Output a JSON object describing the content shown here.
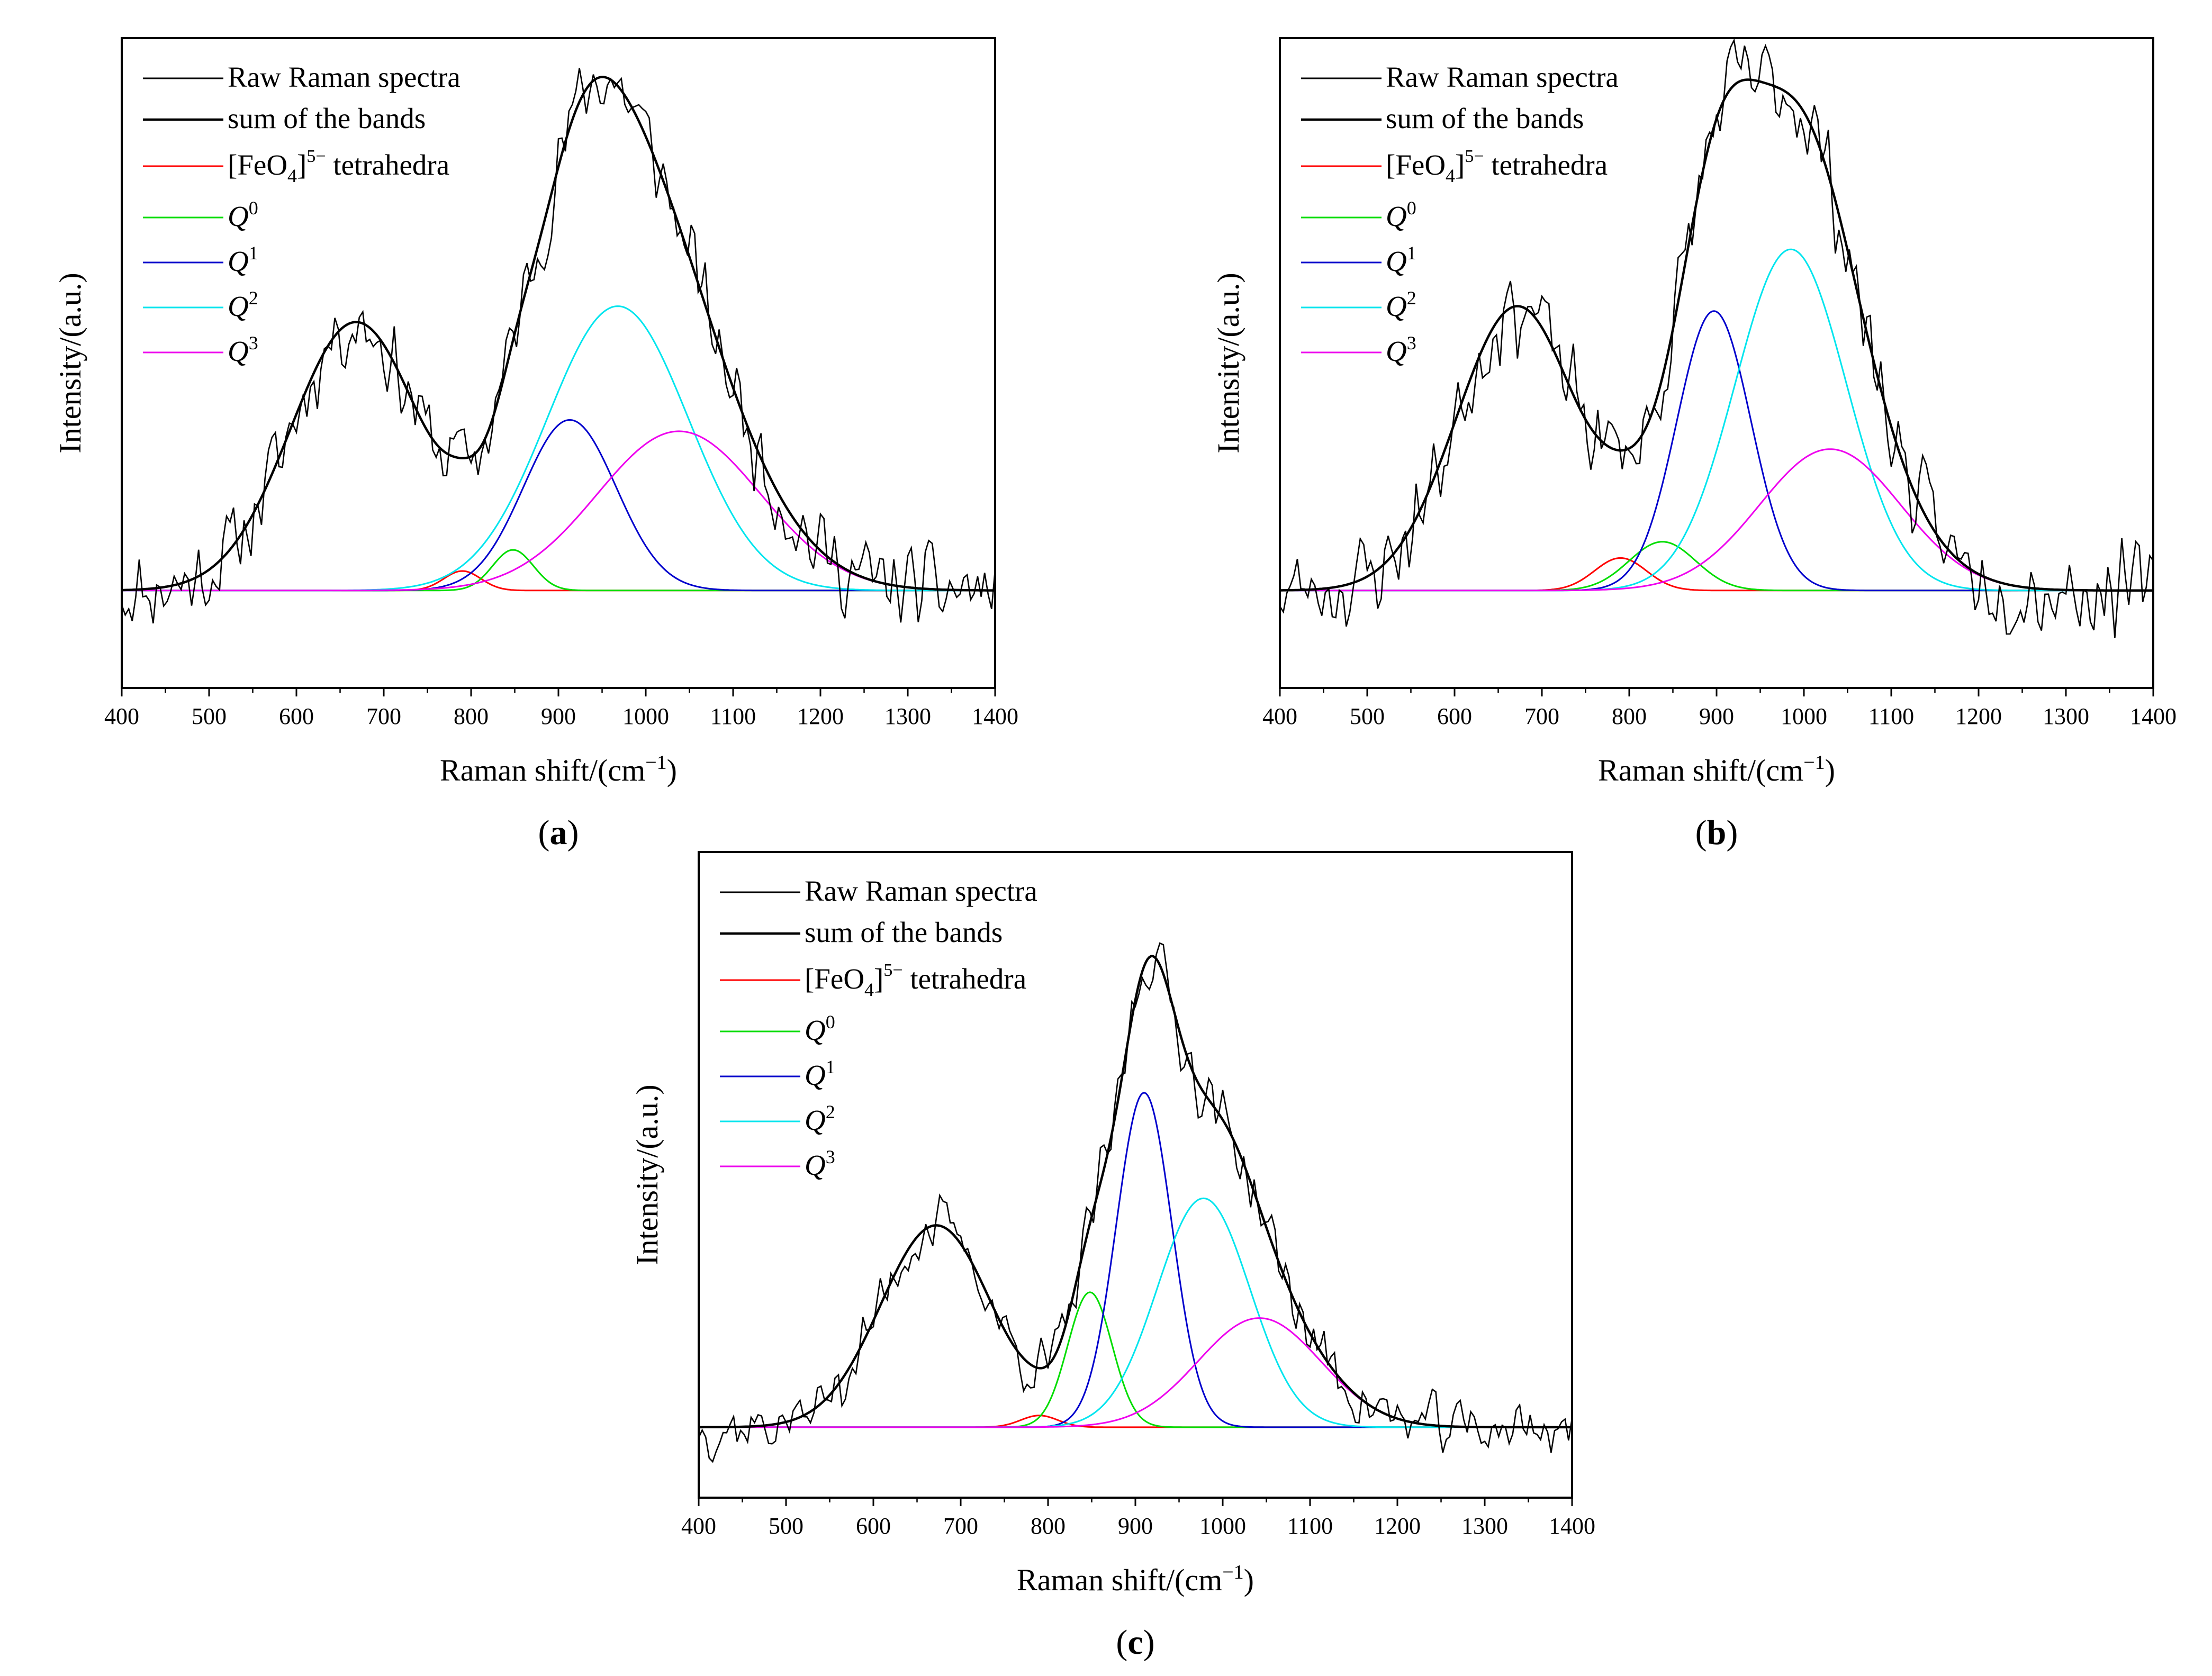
{
  "chart_data": [
    {
      "type": "line",
      "panel_label": "a",
      "xlabel": "Raman shift/(cm",
      "xlabel_sup": "−1",
      "xlabel_end": ")",
      "ylabel": "Intensity/(a.u.)",
      "xlim": [
        400,
        1400
      ],
      "xticks": [
        "400",
        "500",
        "600",
        "700",
        "800",
        "900",
        "1000",
        "1100",
        "1200",
        "1300",
        "1400"
      ],
      "ylim": [
        -0.06,
        0.34
      ],
      "grid": false,
      "legend_position": "top-left",
      "legend": [
        {
          "label": "Raw Raman spectra",
          "color": "#000000"
        },
        {
          "label": "sum of the bands",
          "color": "#000000"
        },
        {
          "label_parts": [
            "[FeO",
            "4",
            "]",
            "5−",
            " tetrahedra"
          ],
          "color": "#ff0000"
        },
        {
          "label_parts": [
            "Q",
            "0"
          ],
          "color": "#00dd00"
        },
        {
          "label_parts": [
            "Q",
            "1"
          ],
          "color": "#0000cc"
        },
        {
          "label_parts": [
            "Q",
            "2"
          ],
          "color": "#00e5ee"
        },
        {
          "label_parts": [
            "Q",
            "3"
          ],
          "color": "#ee00ee"
        }
      ],
      "series": [
        {
          "name": "Raw Raman spectra",
          "color": "#000000",
          "x_start": 400,
          "x_end": 1400,
          "x_step": 4,
          "noise_amplitude": 0.02,
          "seed": 11
        },
        {
          "name": "sum of the bands",
          "color": "#000000",
          "sum_of": [
            "[FeO4]5- low-frequency band",
            "[FeO4]5- tetrahedra",
            "Q0",
            "Q1",
            "Q2",
            "Q3"
          ]
        },
        {
          "name": "[FeO4]5- low-frequency band",
          "shown_in_legend": false,
          "center": 668,
          "height": 0.165,
          "fwhm": 175
        },
        {
          "name": "[FeO4]5- tetrahedra",
          "color": "#ff0000",
          "center": 790,
          "height": 0.012,
          "fwhm": 50
        },
        {
          "name": "Q0",
          "color": "#00dd00",
          "center": 848,
          "height": 0.025,
          "fwhm": 55
        },
        {
          "name": "Q1",
          "color": "#0000cc",
          "center": 913,
          "height": 0.105,
          "fwhm": 125
        },
        {
          "name": "Q2",
          "color": "#00e5ee",
          "center": 968,
          "height": 0.175,
          "fwhm": 190
        },
        {
          "name": "Q3",
          "color": "#ee00ee",
          "center": 1038,
          "height": 0.098,
          "fwhm": 220
        }
      ]
    },
    {
      "type": "line",
      "panel_label": "b",
      "xlabel": "Raman shift/(cm",
      "xlabel_sup": "−1",
      "xlabel_end": ")",
      "ylabel": "Intensity/(a.u.)",
      "xlim": [
        400,
        1400
      ],
      "xticks": [
        "400",
        "500",
        "600",
        "700",
        "800",
        "900",
        "1000",
        "1100",
        "1200",
        "1300",
        "1400"
      ],
      "ylim": [
        -0.06,
        0.34
      ],
      "grid": false,
      "legend_position": "top-left",
      "legend": [
        {
          "label": "Raw Raman spectra",
          "color": "#000000"
        },
        {
          "label": "sum of the bands",
          "color": "#000000"
        },
        {
          "label_parts": [
            "[FeO",
            "4",
            "]",
            "5−",
            " tetrahedra"
          ],
          "color": "#ff0000"
        },
        {
          "label_parts": [
            "Q",
            "0"
          ],
          "color": "#00dd00"
        },
        {
          "label_parts": [
            "Q",
            "1"
          ],
          "color": "#0000cc"
        },
        {
          "label_parts": [
            "Q",
            "2"
          ],
          "color": "#00e5ee"
        },
        {
          "label_parts": [
            "Q",
            "3"
          ],
          "color": "#ee00ee"
        }
      ],
      "series": [
        {
          "name": "Raw Raman spectra",
          "color": "#000000",
          "x_start": 400,
          "x_end": 1400,
          "x_step": 4,
          "noise_amplitude": 0.022,
          "seed": 23
        },
        {
          "name": "sum of the bands",
          "color": "#000000",
          "sum_of": [
            "[FeO4]5- low-frequency band",
            "[FeO4]5- tetrahedra",
            "Q0",
            "Q1",
            "Q2",
            "Q3"
          ]
        },
        {
          "name": "[FeO4]5- low-frequency band",
          "shown_in_legend": false,
          "center": 672,
          "height": 0.175,
          "fwhm": 165
        },
        {
          "name": "[FeO4]5- tetrahedra",
          "color": "#ff0000",
          "center": 790,
          "height": 0.02,
          "fwhm": 70
        },
        {
          "name": "Q0",
          "color": "#00dd00",
          "center": 838,
          "height": 0.03,
          "fwhm": 90
        },
        {
          "name": "Q1",
          "color": "#0000cc",
          "center": 897,
          "height": 0.172,
          "fwhm": 100
        },
        {
          "name": "Q2",
          "color": "#00e5ee",
          "center": 985,
          "height": 0.21,
          "fwhm": 150
        },
        {
          "name": "Q3",
          "color": "#ee00ee",
          "center": 1030,
          "height": 0.087,
          "fwhm": 190
        }
      ]
    },
    {
      "type": "line",
      "panel_label": "c",
      "xlabel": "Raman shift/(cm",
      "xlabel_sup": "−1",
      "xlabel_end": ")",
      "ylabel": "Intensity/(a.u.)",
      "xlim": [
        400,
        1400
      ],
      "xticks": [
        "400",
        "500",
        "600",
        "700",
        "800",
        "900",
        "1000",
        "1100",
        "1200",
        "1300",
        "1400"
      ],
      "ylim": [
        -0.06,
        0.49
      ],
      "grid": false,
      "legend_position": "top-left",
      "legend": [
        {
          "label": "Raw Raman spectra",
          "color": "#000000"
        },
        {
          "label": "sum of the bands",
          "color": "#000000"
        },
        {
          "label_parts": [
            "[FeO",
            "4",
            "]",
            "5−",
            " tetrahedra"
          ],
          "color": "#ff0000"
        },
        {
          "label_parts": [
            "Q",
            "0"
          ],
          "color": "#00dd00"
        },
        {
          "label_parts": [
            "Q",
            "1"
          ],
          "color": "#0000cc"
        },
        {
          "label_parts": [
            "Q",
            "2"
          ],
          "color": "#00e5ee"
        },
        {
          "label_parts": [
            "Q",
            "3"
          ],
          "color": "#ee00ee"
        }
      ],
      "series": [
        {
          "name": "Raw Raman spectra",
          "color": "#000000",
          "x_start": 400,
          "x_end": 1400,
          "x_step": 4,
          "noise_amplitude": 0.02,
          "seed": 37
        },
        {
          "name": "sum of the bands",
          "color": "#000000",
          "sum_of": [
            "[FeO4]5- low-frequency band",
            "[FeO4]5- tetrahedra",
            "Q0",
            "Q1",
            "Q2",
            "Q3"
          ]
        },
        {
          "name": "[FeO4]5- low-frequency band",
          "shown_in_legend": false,
          "center": 672,
          "height": 0.172,
          "fwhm": 150
        },
        {
          "name": "[FeO4]5- tetrahedra",
          "color": "#ff0000",
          "center": 790,
          "height": 0.01,
          "fwhm": 50
        },
        {
          "name": "Q0",
          "color": "#00dd00",
          "center": 848,
          "height": 0.115,
          "fwhm": 60
        },
        {
          "name": "Q1",
          "color": "#0000cc",
          "center": 910,
          "height": 0.285,
          "fwhm": 75
        },
        {
          "name": "Q2",
          "color": "#00e5ee",
          "center": 978,
          "height": 0.195,
          "fwhm": 125
        },
        {
          "name": "Q3",
          "color": "#ee00ee",
          "center": 1042,
          "height": 0.093,
          "fwhm": 165
        }
      ]
    }
  ]
}
